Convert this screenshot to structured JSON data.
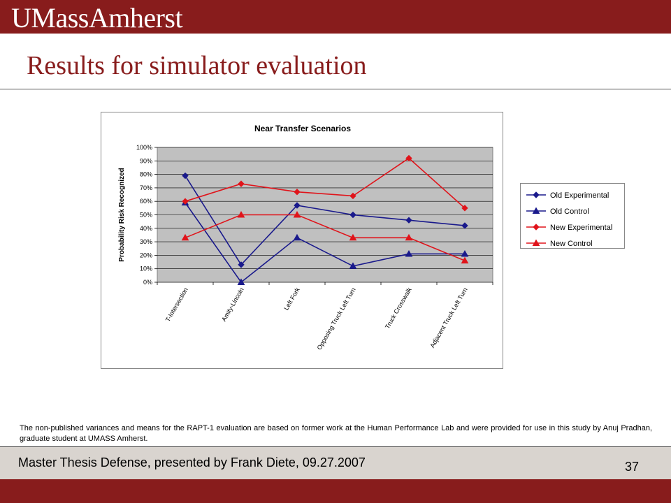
{
  "header": {
    "logo_text": "UMassAmherst",
    "slide_title": "Results for simulator evaluation"
  },
  "chart_data": {
    "type": "line",
    "title": "Near Transfer Scenarios",
    "xlabel": "",
    "ylabel": "Probability Risk Recognized",
    "categories": [
      "T-Intersection",
      "Amity-Lincoln",
      "Left Fork",
      "Opposing Truck Left Turn",
      "Truck Crosswalk",
      "Adjacent Truck Left Turn"
    ],
    "y_ticks": [
      "0%",
      "10%",
      "20%",
      "30%",
      "40%",
      "50%",
      "60%",
      "70%",
      "80%",
      "90%",
      "100%"
    ],
    "ylim": [
      0,
      100
    ],
    "grid": true,
    "plot_background": "#c0c0c0",
    "legend_position": "right",
    "series": [
      {
        "name": "Old Experimental",
        "color": "#1a1a8c",
        "marker": "diamond",
        "values": [
          79,
          13,
          57,
          50,
          46,
          42
        ]
      },
      {
        "name": "Old Control",
        "color": "#1a1a8c",
        "marker": "triangle",
        "values": [
          59,
          0,
          33,
          12,
          21,
          21
        ]
      },
      {
        "name": "New Experimental",
        "color": "#e0141b",
        "marker": "diamond",
        "values": [
          60,
          73,
          67,
          64,
          92,
          55
        ]
      },
      {
        "name": "New Control",
        "color": "#e0141b",
        "marker": "triangle",
        "values": [
          33,
          50,
          50,
          33,
          33,
          16
        ]
      }
    ]
  },
  "note": "The non-published variances and means for the RAPT-1 evaluation are based on former work at the Human Performance Lab and were provided for use in this study by Anuj Pradhan, graduate student at UMASS Amherst.",
  "footer": {
    "text": "Master Thesis Defense, presented by Frank Diete, 09.27.2007",
    "page_number": "37"
  },
  "colors": {
    "brand": "#881c1c",
    "footer_bg": "#d9d4cf"
  }
}
